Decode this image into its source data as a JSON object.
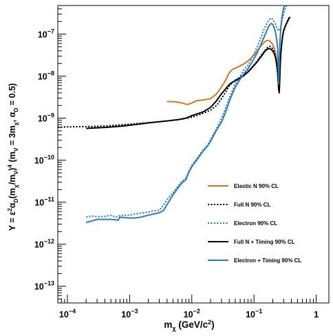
{
  "chart_data": {
    "type": "line",
    "xscale": "log",
    "yscale": "log",
    "xlim": [
      7e-05,
      1.6
    ],
    "ylim": [
      4e-14,
      4.8e-07
    ],
    "xlabel": "mχ (GeV/c²)",
    "ylabel": "Y = ε²αD(mχ/mV)⁴ (mV = 3mχ, αD = 0.5)",
    "x_ticks": [
      {
        "value": 0.0001,
        "base": "10",
        "exp": "−4"
      },
      {
        "value": 0.001,
        "base": "10",
        "exp": "−3"
      },
      {
        "value": 0.01,
        "base": "10",
        "exp": "−2"
      },
      {
        "value": 0.1,
        "base": "10",
        "exp": "−1"
      },
      {
        "value": 1,
        "base": "1",
        "exp": ""
      }
    ],
    "y_ticks": [
      {
        "value": 1e-13,
        "base": "10",
        "exp": "−13"
      },
      {
        "value": 1e-12,
        "base": "10",
        "exp": "−12"
      },
      {
        "value": 1e-11,
        "base": "10",
        "exp": "−11"
      },
      {
        "value": 1e-10,
        "base": "10",
        "exp": "−10"
      },
      {
        "value": 1e-09,
        "base": "10",
        "exp": "−9"
      },
      {
        "value": 1e-08,
        "base": "10",
        "exp": "−8"
      },
      {
        "value": 1e-07,
        "base": "10",
        "exp": "−7"
      }
    ],
    "legend_position": "bottom-right",
    "series": [
      {
        "name": "Elastic N 90% CL",
        "color": "#e07020",
        "dash": "solid",
        "x": [
          0.004,
          0.0055,
          0.007,
          0.0085,
          0.01,
          0.012,
          0.015,
          0.02,
          0.025,
          0.03,
          0.035,
          0.04,
          0.045,
          0.05,
          0.06,
          0.07,
          0.08,
          0.09,
          0.1,
          0.11,
          0.12,
          0.13,
          0.14,
          0.15,
          0.16,
          0.17,
          0.18,
          0.19,
          0.2,
          0.21,
          0.22,
          0.23,
          0.24,
          0.25
        ],
        "y": [
          2.5e-09,
          2.45e-09,
          2.3e-09,
          2.1e-09,
          2.3e-09,
          2.6e-09,
          2.7e-09,
          2.9e-09,
          3.8e-09,
          5.5e-09,
          8e-09,
          1.2e-08,
          1.45e-08,
          1.55e-08,
          1.75e-08,
          2e-08,
          2.3e-08,
          2.7e-08,
          3.2e-08,
          3.8e-08,
          4.6e-08,
          5.3e-08,
          6e-08,
          6.6e-08,
          7e-08,
          7.1e-08,
          6.8e-08,
          6.3e-08,
          5.6e-08,
          4.8e-08,
          3.8e-08,
          2.5e-08,
          1.3e-08,
          4.6e-09
        ]
      },
      {
        "name": "Full N 90% CL",
        "color": "#000000",
        "dash": "dotted",
        "x": [
          7e-05,
          0.0001,
          0.0002,
          0.0004,
          0.0007,
          0.001,
          0.002,
          0.004,
          0.007,
          0.01,
          0.015,
          0.02,
          0.025,
          0.03,
          0.035,
          0.04,
          0.045,
          0.05,
          0.06,
          0.07,
          0.08,
          0.09,
          0.1,
          0.11,
          0.12,
          0.13,
          0.14,
          0.15,
          0.16,
          0.17,
          0.18,
          0.19,
          0.2,
          0.21,
          0.22,
          0.23,
          0.24,
          0.25,
          0.255,
          0.26,
          0.265,
          0.27,
          0.28,
          0.29,
          0.3,
          0.32,
          0.34,
          0.36,
          0.38
        ],
        "y": [
          6.1e-10,
          6.2e-10,
          6.3e-10,
          6.5e-10,
          6.9e-10,
          7.2e-10,
          7.8e-10,
          8.6e-10,
          9.5e-10,
          1.05e-09,
          1.3e-09,
          1.55e-09,
          2e-09,
          2.9e-09,
          4.2e-09,
          5.8e-09,
          7e-09,
          8e-09,
          9.5e-09,
          1.1e-08,
          1.3e-08,
          1.55e-08,
          1.85e-08,
          2.2e-08,
          2.6e-08,
          3.1e-08,
          3.6e-08,
          4.1e-08,
          4.6e-08,
          5e-08,
          5.1e-08,
          4.9e-08,
          4.5e-08,
          3.9e-08,
          3e-08,
          2e-08,
          1.1e-08,
          4.6e-09,
          4.4e-09,
          1e-08,
          2.2e-08,
          3.6e-08,
          6.5e-08,
          9.5e-08,
          1.25e-07,
          1.6e-07,
          1.95e-07,
          2.35e-07,
          2.7e-07
        ]
      },
      {
        "name": "Electron 90% CL",
        "color": "#2b7bbf",
        "dash": "dotted",
        "x": [
          0.0002,
          0.00025,
          0.0003,
          0.0004,
          0.0005,
          0.0006,
          0.0007,
          0.0008,
          0.001,
          0.0012,
          0.0015,
          0.002,
          0.0025,
          0.003,
          0.0035,
          0.004,
          0.005,
          0.006,
          0.007,
          0.008,
          0.009,
          0.01,
          0.012,
          0.015,
          0.018,
          0.02,
          0.025,
          0.03,
          0.035,
          0.04,
          0.05,
          0.06,
          0.07,
          0.08,
          0.09,
          0.1,
          0.11,
          0.12,
          0.13,
          0.14,
          0.15,
          0.16,
          0.17,
          0.18,
          0.19,
          0.2,
          0.21,
          0.22,
          0.23,
          0.24,
          0.25,
          0.26,
          0.27,
          0.28,
          0.29,
          0.3,
          0.31,
          0.32,
          0.33,
          0.34,
          0.36
        ],
        "y": [
          4.4e-12,
          4.7e-12,
          4.5e-12,
          4.6e-12,
          4.9e-12,
          4.4e-12,
          4.8e-12,
          4.9e-12,
          4.9e-12,
          5.2e-12,
          5.5e-12,
          5.8e-12,
          6.3e-12,
          6.4e-12,
          8.5e-12,
          1.15e-11,
          1.7e-11,
          2.4e-11,
          3.2e-11,
          3.7e-11,
          5.6e-11,
          7.5e-11,
          1.1e-10,
          1.7e-10,
          2.3e-10,
          3.1e-10,
          5.6e-10,
          1e-09,
          1.7e-09,
          3e-09,
          6.5e-09,
          1e-08,
          1.5e-08,
          1.8e-08,
          2.5e-08,
          3.4e-08,
          4.6e-08,
          6.2e-08,
          8.5e-08,
          1.15e-07,
          1.45e-07,
          1.75e-07,
          2.05e-07,
          2.3e-07,
          2.4e-07,
          2.25e-07,
          2e-07,
          1.75e-07,
          1.5e-07,
          1.3e-07,
          1.2e-07,
          1.3e-07,
          1.6e-07,
          2e-07,
          2.5e-07,
          3e-07,
          3.6e-07,
          4.2e-07,
          4.6e-07,
          4.7e-07,
          4.8e-07
        ]
      },
      {
        "name": "Full N + Timing 90% CL",
        "color": "#000000",
        "dash": "solid",
        "x": [
          0.0002,
          0.0003,
          0.0004,
          0.0006,
          0.0008,
          0.001,
          0.0015,
          0.002,
          0.003,
          0.004,
          0.006,
          0.008,
          0.01,
          0.015,
          0.02,
          0.025,
          0.03,
          0.035,
          0.04,
          0.045,
          0.05,
          0.06,
          0.07,
          0.08,
          0.09,
          0.1,
          0.11,
          0.12,
          0.13,
          0.14,
          0.15,
          0.16,
          0.17,
          0.18,
          0.19,
          0.2,
          0.21,
          0.22,
          0.23,
          0.24,
          0.25,
          0.255,
          0.26,
          0.265,
          0.27,
          0.28,
          0.29,
          0.3,
          0.32,
          0.34,
          0.36,
          0.38
        ],
        "y": [
          5.7e-10,
          5.9e-10,
          6e-10,
          6.3e-10,
          6.5e-10,
          6.8e-10,
          7.3e-10,
          7.7e-10,
          8.2e-10,
          8.6e-10,
          9.2e-10,
          1e-09,
          1.15e-09,
          1.4e-09,
          1.8e-09,
          2.6e-09,
          3.8e-09,
          5e-09,
          6.3e-09,
          7.2e-09,
          7.8e-09,
          9e-09,
          1.05e-08,
          1.25e-08,
          1.5e-08,
          1.8e-08,
          2.1e-08,
          2.5e-08,
          2.9e-08,
          3.4e-08,
          3.9e-08,
          4.3e-08,
          4.5e-08,
          4.5e-08,
          4.3e-08,
          4e-08,
          3.5e-08,
          2.9e-08,
          2.1e-08,
          1.3e-08,
          5e-09,
          4e-09,
          9e-09,
          2e-08,
          3.4e-08,
          6.2e-08,
          9.2e-08,
          1.2e-07,
          1.55e-07,
          1.9e-07,
          2.25e-07,
          2.55e-07
        ]
      },
      {
        "name": "Electron + Timing 90% CL",
        "color": "#2b7bbf",
        "dash": "solid",
        "x": [
          0.0002,
          0.00025,
          0.0003,
          0.0004,
          0.0005,
          0.0006,
          0.00065,
          0.0007,
          0.0008,
          0.001,
          0.0012,
          0.0015,
          0.002,
          0.0025,
          0.003,
          0.0035,
          0.004,
          0.005,
          0.006,
          0.007,
          0.008,
          0.009,
          0.01,
          0.012,
          0.015,
          0.018,
          0.02,
          0.025,
          0.03,
          0.035,
          0.04,
          0.05,
          0.06,
          0.07,
          0.08,
          0.09,
          0.1,
          0.11,
          0.12,
          0.13,
          0.14,
          0.15,
          0.16,
          0.17,
          0.18,
          0.19,
          0.2,
          0.21,
          0.22,
          0.23,
          0.24,
          0.25,
          0.26,
          0.27,
          0.28,
          0.29,
          0.3,
          0.31,
          0.32
        ],
        "y": [
          3.3e-12,
          3.6e-12,
          3.9e-12,
          3.9e-12,
          3.9e-12,
          3.8e-12,
          3.7e-12,
          4.4e-12,
          4.3e-12,
          4.2e-12,
          4.2e-12,
          4.4e-12,
          4.9e-12,
          5.3e-12,
          5.6e-12,
          6.3e-12,
          8.8e-12,
          1.5e-11,
          2.2e-11,
          2.9e-11,
          3.4e-11,
          5.2e-11,
          7e-11,
          1e-10,
          1.6e-10,
          2.2e-10,
          2.8e-10,
          5.2e-10,
          8e-10,
          1.4e-09,
          2.5e-09,
          5.5e-09,
          8.5e-09,
          1.2e-08,
          1.5e-08,
          2e-08,
          2.6e-08,
          3.4e-08,
          4.4e-08,
          5.8e-08,
          7.5e-08,
          9.5e-08,
          1.2e-07,
          1.45e-07,
          1.7e-07,
          1.8e-07,
          1.7e-07,
          1.45e-07,
          1.15e-07,
          8e-08,
          4.5e-08,
          6.5e-09,
          6e-08,
          1.4e-07,
          2.3e-07,
          3.3e-07,
          4.2e-07,
          4.7e-07,
          4.8e-07
        ]
      }
    ]
  }
}
